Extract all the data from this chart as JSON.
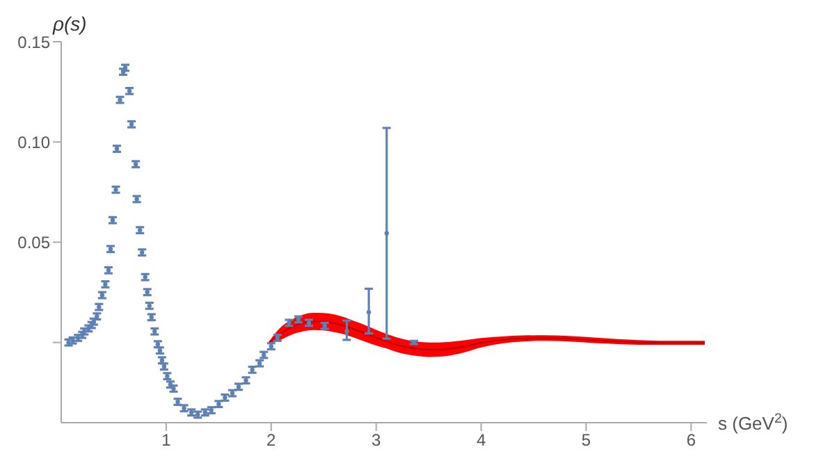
{
  "chart_data": {
    "type": "scatter",
    "xlabel": "s (GeV$^{2}$)",
    "ylabel": "ρ(s)",
    "xlim": [
      0,
      6.15
    ],
    "ylim": [
      -0.04,
      0.15
    ],
    "xticks": [
      1,
      2,
      3,
      4,
      5,
      6
    ],
    "yticks": [
      {
        "value": 0,
        "label": null
      },
      0.05,
      {
        "value": 0.1,
        "label": "0.10"
      },
      0.15
    ],
    "series": [
      {
        "type": "line",
        "color": "#b30000",
        "x": [
          1.98,
          2.1,
          2.2,
          2.3,
          2.4,
          2.5,
          2.6,
          2.7,
          2.8,
          2.9,
          3.0,
          3.1,
          3.2,
          3.3,
          3.4,
          3.5,
          3.6,
          3.8,
          4.0,
          4.2,
          4.4,
          4.6,
          4.8,
          5.0,
          5.2,
          5.4,
          5.6,
          5.8,
          6.0,
          6.13
        ],
        "values": [
          0,
          0.0048,
          0.0078,
          0.0097,
          0.0105,
          0.0104,
          0.0096,
          0.0083,
          0.0064,
          0.0044,
          0.0024,
          0.0006,
          -0.0012,
          -0.0024,
          -0.0032,
          -0.0036,
          -0.0036,
          -0.0024,
          -0.0002,
          0.0013,
          0.002,
          0.0022,
          0.002,
          0.0014,
          0.0007,
          0.0002,
          -0.0001,
          -0.0002,
          -0.0002,
          -0.0002
        ],
        "lower": [
          -0.0005,
          0.0015,
          0.004,
          0.0055,
          0.0062,
          0.006,
          0.0052,
          0.004,
          0.0022,
          0.0003,
          -0.0015,
          -0.003,
          -0.0048,
          -0.006,
          -0.0068,
          -0.0072,
          -0.0071,
          -0.0055,
          -0.0025,
          -0.0005,
          0.0005,
          0.0008,
          0.0006,
          0,
          -0.0006,
          -0.001,
          -0.0012,
          -0.0012,
          -0.0012,
          -0.0012
        ],
        "upper": [
          0.0005,
          0.008,
          0.0115,
          0.0138,
          0.0148,
          0.0147,
          0.014,
          0.0125,
          0.0105,
          0.0085,
          0.0063,
          0.0042,
          0.0025,
          0.0012,
          0.0004,
          0,
          0,
          0.0008,
          0.0022,
          0.003,
          0.0035,
          0.0036,
          0.0033,
          0.0027,
          0.002,
          0.0014,
          0.001,
          0.0008,
          0.0008,
          0.0008
        ]
      },
      {
        "color": "#5e81b5",
        "marker": "circle",
        "x": [
          0.07,
          0.11,
          0.16,
          0.2,
          0.22,
          0.26,
          0.29,
          0.31,
          0.34,
          0.36,
          0.39,
          0.42,
          0.45,
          0.47,
          0.49,
          0.52,
          0.53,
          0.56,
          0.59,
          0.61,
          0.65,
          0.67,
          0.71,
          0.72,
          0.75,
          0.77,
          0.8,
          0.82,
          0.84,
          0.86,
          0.89,
          0.92,
          0.94,
          0.96,
          0.98,
          1.01,
          1.04,
          1.07,
          1.11,
          1.17,
          1.24,
          1.3,
          1.37,
          1.43,
          1.5,
          1.56,
          1.63,
          1.69,
          1.76,
          1.82,
          1.89,
          1.93,
          2.0,
          2.06,
          2.17,
          2.26,
          2.36,
          2.51,
          2.72,
          2.93,
          3.1,
          3.36
        ],
        "values": [
          0,
          0.001,
          0.0023,
          0.0038,
          0.0055,
          0.007,
          0.0087,
          0.0104,
          0.013,
          0.0177,
          0.0236,
          0.029,
          0.036,
          0.0466,
          0.061,
          0.0762,
          0.0966,
          0.121,
          0.135,
          0.137,
          0.1254,
          0.1088,
          0.0889,
          0.0715,
          0.056,
          0.0449,
          0.0326,
          0.0251,
          0.0183,
          0.0126,
          0.0055,
          -0.0009,
          -0.004,
          -0.0089,
          -0.012,
          -0.0168,
          -0.021,
          -0.023,
          -0.0296,
          -0.0328,
          -0.0349,
          -0.036,
          -0.0349,
          -0.0338,
          -0.0307,
          -0.0275,
          -0.0253,
          -0.0221,
          -0.0189,
          -0.0136,
          -0.0104,
          -0.0062,
          -0.0019,
          0.0023,
          0.0098,
          0.0115,
          0.0098,
          0.0083,
          0.0055,
          0.0151,
          0.0545,
          0
        ],
        "errors": [
          0.0015,
          0.0015,
          0.0015,
          0.0015,
          0.0015,
          0.0015,
          0.0015,
          0.0015,
          0.0015,
          0.0015,
          0.0015,
          0.0015,
          0.0015,
          0.0015,
          0.0015,
          0.0015,
          0.0015,
          0.0015,
          0.0015,
          0.0015,
          0.0015,
          0.0015,
          0.0015,
          0.0015,
          0.0015,
          0.0015,
          0.0015,
          0.0015,
          0.0015,
          0.0015,
          0.0015,
          0.0015,
          0.0015,
          0.0015,
          0.0015,
          0.0015,
          0.0015,
          0.0015,
          0.0015,
          0.0015,
          0.0015,
          0.0015,
          0.0015,
          0.0015,
          0.0015,
          0.0015,
          0.0015,
          0.0015,
          0.0015,
          0.0015,
          0.0015,
          0.0015,
          0.0015,
          0.0015,
          0.0015,
          0.0015,
          0.0015,
          0.0015,
          [
            0.0013,
            0.0109
          ],
          [
            0.0045,
            0.0268
          ],
          [
            0.0019,
            0.107
          ],
          0.0008
        ]
      }
    ]
  }
}
